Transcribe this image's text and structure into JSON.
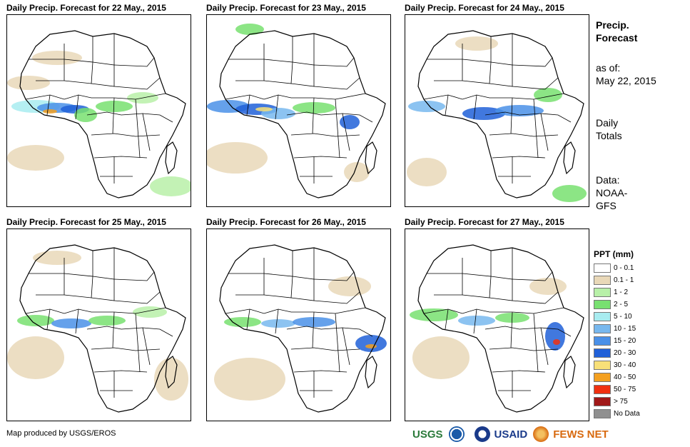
{
  "panels": [
    {
      "title": "Daily Precip. Forecast for 22 May., 2015"
    },
    {
      "title": "Daily Precip. Forecast for 23 May., 2015"
    },
    {
      "title": "Daily Precip. Forecast for 24 May., 2015"
    },
    {
      "title": "Daily Precip. Forecast for 25 May., 2015"
    },
    {
      "title": "Daily Precip. Forecast for 26 May., 2015"
    },
    {
      "title": "Daily Precip. Forecast for 27 May., 2015"
    }
  ],
  "side": {
    "title_line1": "Precip.",
    "title_line2": "Forecast",
    "asof_line1": "as of:",
    "asof_line2": "May 22, 2015",
    "totals_line1": "Daily",
    "totals_line2": "Totals",
    "data_line1": "Data:",
    "data_line2": "NOAA-",
    "data_line3": "GFS"
  },
  "legend": {
    "title": "PPT (mm)",
    "items": [
      {
        "label": "0 - 0.1",
        "color": "#ffffff"
      },
      {
        "label": "0.1 - 1",
        "color": "#e9d8b8"
      },
      {
        "label": "1 - 2",
        "color": "#b8f0a8"
      },
      {
        "label": "2 - 5",
        "color": "#78e070"
      },
      {
        "label": "5 - 10",
        "color": "#a8ecf0"
      },
      {
        "label": "10 - 15",
        "color": "#78b8ee"
      },
      {
        "label": "15 - 20",
        "color": "#4a90e8"
      },
      {
        "label": "20 - 30",
        "color": "#2060d8"
      },
      {
        "label": "30 - 40",
        "color": "#f8e078"
      },
      {
        "label": "40 - 50",
        "color": "#f4a020"
      },
      {
        "label": "50 - 75",
        "color": "#f03010"
      },
      {
        "label": "> 75",
        "color": "#a01818"
      },
      {
        "label": "No Data",
        "color": "#909090"
      }
    ]
  },
  "credit": "Map produced by USGS/EROS",
  "logos": {
    "usgs": "USGS",
    "usaid": "USAID",
    "fewsnet": "FEWS NET"
  },
  "colors": {
    "usgs_green": "#2a7a3a",
    "noaa_blue": "#1a5aa8",
    "usaid_blue": "#1a3a8a",
    "fews_orange": "#d86a10"
  }
}
